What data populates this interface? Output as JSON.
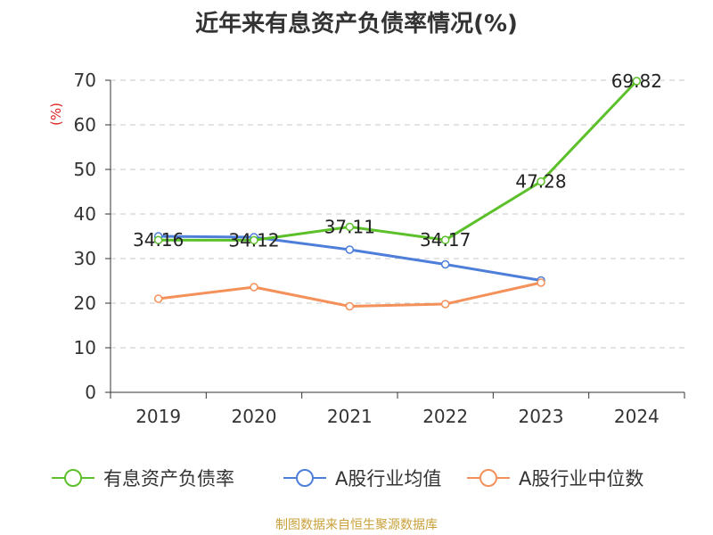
{
  "title": "近年来有息资产负债率情况(%)",
  "source": "制图数据来自恒生聚源数据库",
  "chart_data": {
    "type": "line",
    "title": "近年来有息资产负债率情况(%)",
    "ylabel": "(%)",
    "xlabel": "",
    "categories": [
      "2019",
      "2020",
      "2021",
      "2022",
      "2023",
      "2024"
    ],
    "ylim": [
      0,
      70
    ],
    "yticks": [
      0,
      10,
      20,
      30,
      40,
      50,
      60,
      70
    ],
    "grid": true,
    "legend_position": "bottom",
    "series": [
      {
        "name": "有息资产负债率",
        "color": "#5cc02a",
        "values": [
          34.16,
          34.12,
          37.11,
          34.17,
          47.28,
          69.82
        ],
        "labels": [
          "34.16",
          "34.12",
          "37.11",
          "34.17",
          "47.28",
          "69.82"
        ]
      },
      {
        "name": "A股行业均值",
        "color": "#4d7fda",
        "values": [
          35.0,
          34.8,
          32.0,
          28.7,
          25.1,
          null
        ]
      },
      {
        "name": "A股行业中位数",
        "color": "#f4915a",
        "values": [
          21.0,
          23.6,
          19.3,
          19.8,
          24.6,
          null
        ]
      }
    ]
  }
}
